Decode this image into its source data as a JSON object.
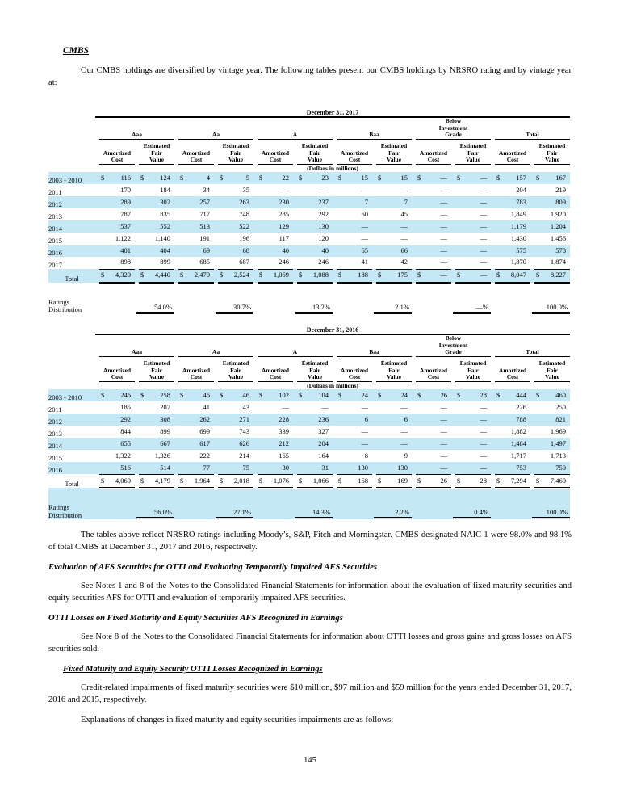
{
  "colors": {
    "row_stripe": "#c5e8f7"
  },
  "page": {
    "heading_cmbs": "CMBS",
    "para_intro": "Our CMBS holdings are diversified by vintage year. The following tables present our CMBS holdings by NRSRO rating and by vintage year at:",
    "para_reflect": "The tables above reflect NRSRO ratings including Moody’s, S&P, Fitch and Morningstar. CMBS designated NAIC 1 were 98.0% and 98.1% of total CMBS at December 31, 2017 and 2016, respectively.",
    "heading_eval": "Evaluation of AFS Securities for OTTI and Evaluating Temporarily Impaired AFS Securities",
    "para_eval": "See Notes 1 and 8 of the Notes to the Consolidated Financial Statements for information about the evaluation of fixed maturity securities and equity securities AFS for OTTI and evaluation of temporarily impaired AFS securities.",
    "heading_otti": "OTTI Losses on Fixed Maturity and Equity Securities AFS Recognized in Earnings",
    "para_otti": "See Note 8 of the Notes to the Consolidated Financial Statements for information about OTTI losses and gross gains and gross losses on AFS securities sold.",
    "heading_fixed": "Fixed Maturity and Equity Security OTTI Losses Recognized in Earnings",
    "para_credit": "Credit-related impairments of fixed maturity securities were $10 million, $97 million and $59 million for the years ended December 31, 2017, 2016 and 2015, respectively.",
    "para_expl": "Explanations of changes in fixed maturity and equity securities impairments are as follows:",
    "page_number": "145"
  },
  "tables": [
    {
      "title": "December 31, 2017",
      "units": "(Dollars in millions)",
      "groups": [
        "Aaa",
        "Aa",
        "A",
        "Baa",
        "Below\nInvestment\nGrade",
        "Total"
      ],
      "subheaders": [
        "Amortized\nCost",
        "Estimated\nFair\nValue"
      ],
      "rows": [
        {
          "label": "2003 - 2010",
          "dollar": true,
          "values": [
            "116",
            "124",
            "4",
            "5",
            "22",
            "23",
            "15",
            "15",
            "—",
            "—",
            "157",
            "167"
          ]
        },
        {
          "label": "2011",
          "dollar": false,
          "values": [
            "170",
            "184",
            "34",
            "35",
            "—",
            "—",
            "—",
            "—",
            "—",
            "—",
            "204",
            "219"
          ]
        },
        {
          "label": "2012",
          "dollar": false,
          "values": [
            "289",
            "302",
            "257",
            "263",
            "230",
            "237",
            "7",
            "7",
            "—",
            "—",
            "783",
            "809"
          ]
        },
        {
          "label": "2013",
          "dollar": false,
          "values": [
            "787",
            "835",
            "717",
            "748",
            "285",
            "292",
            "60",
            "45",
            "—",
            "—",
            "1,849",
            "1,920"
          ]
        },
        {
          "label": "2014",
          "dollar": false,
          "values": [
            "537",
            "552",
            "513",
            "522",
            "129",
            "130",
            "—",
            "—",
            "—",
            "—",
            "1,179",
            "1,204"
          ]
        },
        {
          "label": "2015",
          "dollar": false,
          "values": [
            "1,122",
            "1,140",
            "191",
            "196",
            "117",
            "120",
            "—",
            "—",
            "—",
            "—",
            "1,430",
            "1,456"
          ]
        },
        {
          "label": "2016",
          "dollar": false,
          "values": [
            "401",
            "404",
            "69",
            "68",
            "40",
            "40",
            "65",
            "66",
            "—",
            "—",
            "575",
            "578"
          ]
        },
        {
          "label": "2017",
          "dollar": false,
          "values": [
            "898",
            "899",
            "685",
            "687",
            "246",
            "246",
            "41",
            "42",
            "—",
            "—",
            "1,870",
            "1,874"
          ]
        }
      ],
      "total": {
        "label": "Total",
        "dollar": true,
        "values": [
          "4,320",
          "4,440",
          "2,470",
          "2,524",
          "1,069",
          "1,088",
          "188",
          "175",
          "—",
          "—",
          "8,047",
          "8,227"
        ]
      },
      "ratings_label": "Ratings\nDistribution",
      "ratings": [
        "54.0%",
        "30.7%",
        "13.2%",
        "2.1%",
        "—%",
        "100.0%"
      ]
    },
    {
      "title": "December 31, 2016",
      "units": "(Dollars in millions)",
      "groups": [
        "Aaa",
        "Aa",
        "A",
        "Baa",
        "Below\nInvestment\nGrade",
        "Total"
      ],
      "subheaders": [
        "Amortized\nCost",
        "Estimated\nFair\nValue"
      ],
      "rows": [
        {
          "label": "2003 - 2010",
          "dollar": true,
          "values": [
            "246",
            "258",
            "46",
            "46",
            "102",
            "104",
            "24",
            "24",
            "26",
            "28",
            "444",
            "460"
          ]
        },
        {
          "label": "2011",
          "dollar": false,
          "values": [
            "185",
            "207",
            "41",
            "43",
            "—",
            "—",
            "—",
            "—",
            "—",
            "—",
            "226",
            "250"
          ]
        },
        {
          "label": "2012",
          "dollar": false,
          "values": [
            "292",
            "308",
            "262",
            "271",
            "228",
            "236",
            "6",
            "6",
            "—",
            "—",
            "788",
            "821"
          ]
        },
        {
          "label": "2013",
          "dollar": false,
          "values": [
            "844",
            "899",
            "699",
            "743",
            "339",
            "327",
            "—",
            "—",
            "—",
            "—",
            "1,882",
            "1,969"
          ]
        },
        {
          "label": "2014",
          "dollar": false,
          "values": [
            "655",
            "667",
            "617",
            "626",
            "212",
            "204",
            "—",
            "—",
            "—",
            "—",
            "1,484",
            "1,497"
          ]
        },
        {
          "label": "2015",
          "dollar": false,
          "values": [
            "1,322",
            "1,326",
            "222",
            "214",
            "165",
            "164",
            "8",
            "9",
            "—",
            "—",
            "1,717",
            "1,713"
          ]
        },
        {
          "label": "2016",
          "dollar": false,
          "values": [
            "516",
            "514",
            "77",
            "75",
            "30",
            "31",
            "130",
            "130",
            "—",
            "—",
            "753",
            "750"
          ]
        }
      ],
      "total": {
        "label": "Total",
        "dollar": true,
        "values": [
          "4,060",
          "4,179",
          "1,964",
          "2,018",
          "1,076",
          "1,066",
          "168",
          "169",
          "26",
          "28",
          "7,294",
          "7,460"
        ]
      },
      "ratings_label": "Ratings\nDistribution",
      "ratings": [
        "56.0%",
        "27.1%",
        "14.3%",
        "2.2%",
        "0.4%",
        "100.0%"
      ]
    }
  ]
}
